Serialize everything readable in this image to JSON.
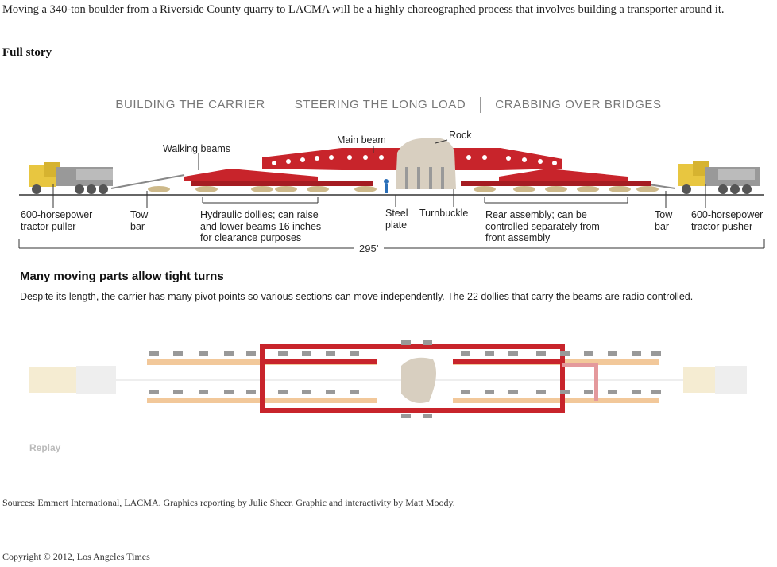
{
  "intro": "Moving a 340-ton boulder from a Riverside County quarry to LACMA will be a highly choreographed process that involves building a transporter around it.",
  "full_story": "Full story",
  "tabs": [
    "BUILDING THE CARRIER",
    "STEERING THE LONG LOAD",
    "CRABBING OVER BRIDGES"
  ],
  "labels": {
    "walking_beams": "Walking beams",
    "main_beam": "Main beam",
    "rock": "Rock",
    "tractor_puller": "600-horsepower\ntractor puller",
    "tow_bar_left": "Tow\nbar",
    "dollies": "Hydraulic dollies; can raise\nand lower beams 16 inches\nfor clearance purposes",
    "steel_plate": "Steel\nplate",
    "turnbuckle": "Turnbuckle",
    "rear_assembly": "Rear assembly; can be\ncontrolled separately from\nfront assembly",
    "tow_bar_right": "Tow\nbar",
    "tractor_pusher": "600-horsepower\ntractor pusher",
    "length": "295’"
  },
  "section": {
    "heading": "Many moving parts allow tight turns",
    "description": "Despite its length, the carrier has many pivot points so various sections can move independently. The 22 dollies that carry the beams are radio controlled."
  },
  "replay": "Replay",
  "sources": "Sources: Emmert International, LACMA. Graphics reporting by Julie Sheer. Graphic and interactivity by Matt Moody.",
  "copyright": "Copyright © 2012, Los Angeles Times",
  "colors": {
    "beam_red": "#c8242b",
    "truck_yellow": "#e8c640",
    "dolly_tan": "#cdb98a",
    "rock": "#d8cfc0"
  }
}
